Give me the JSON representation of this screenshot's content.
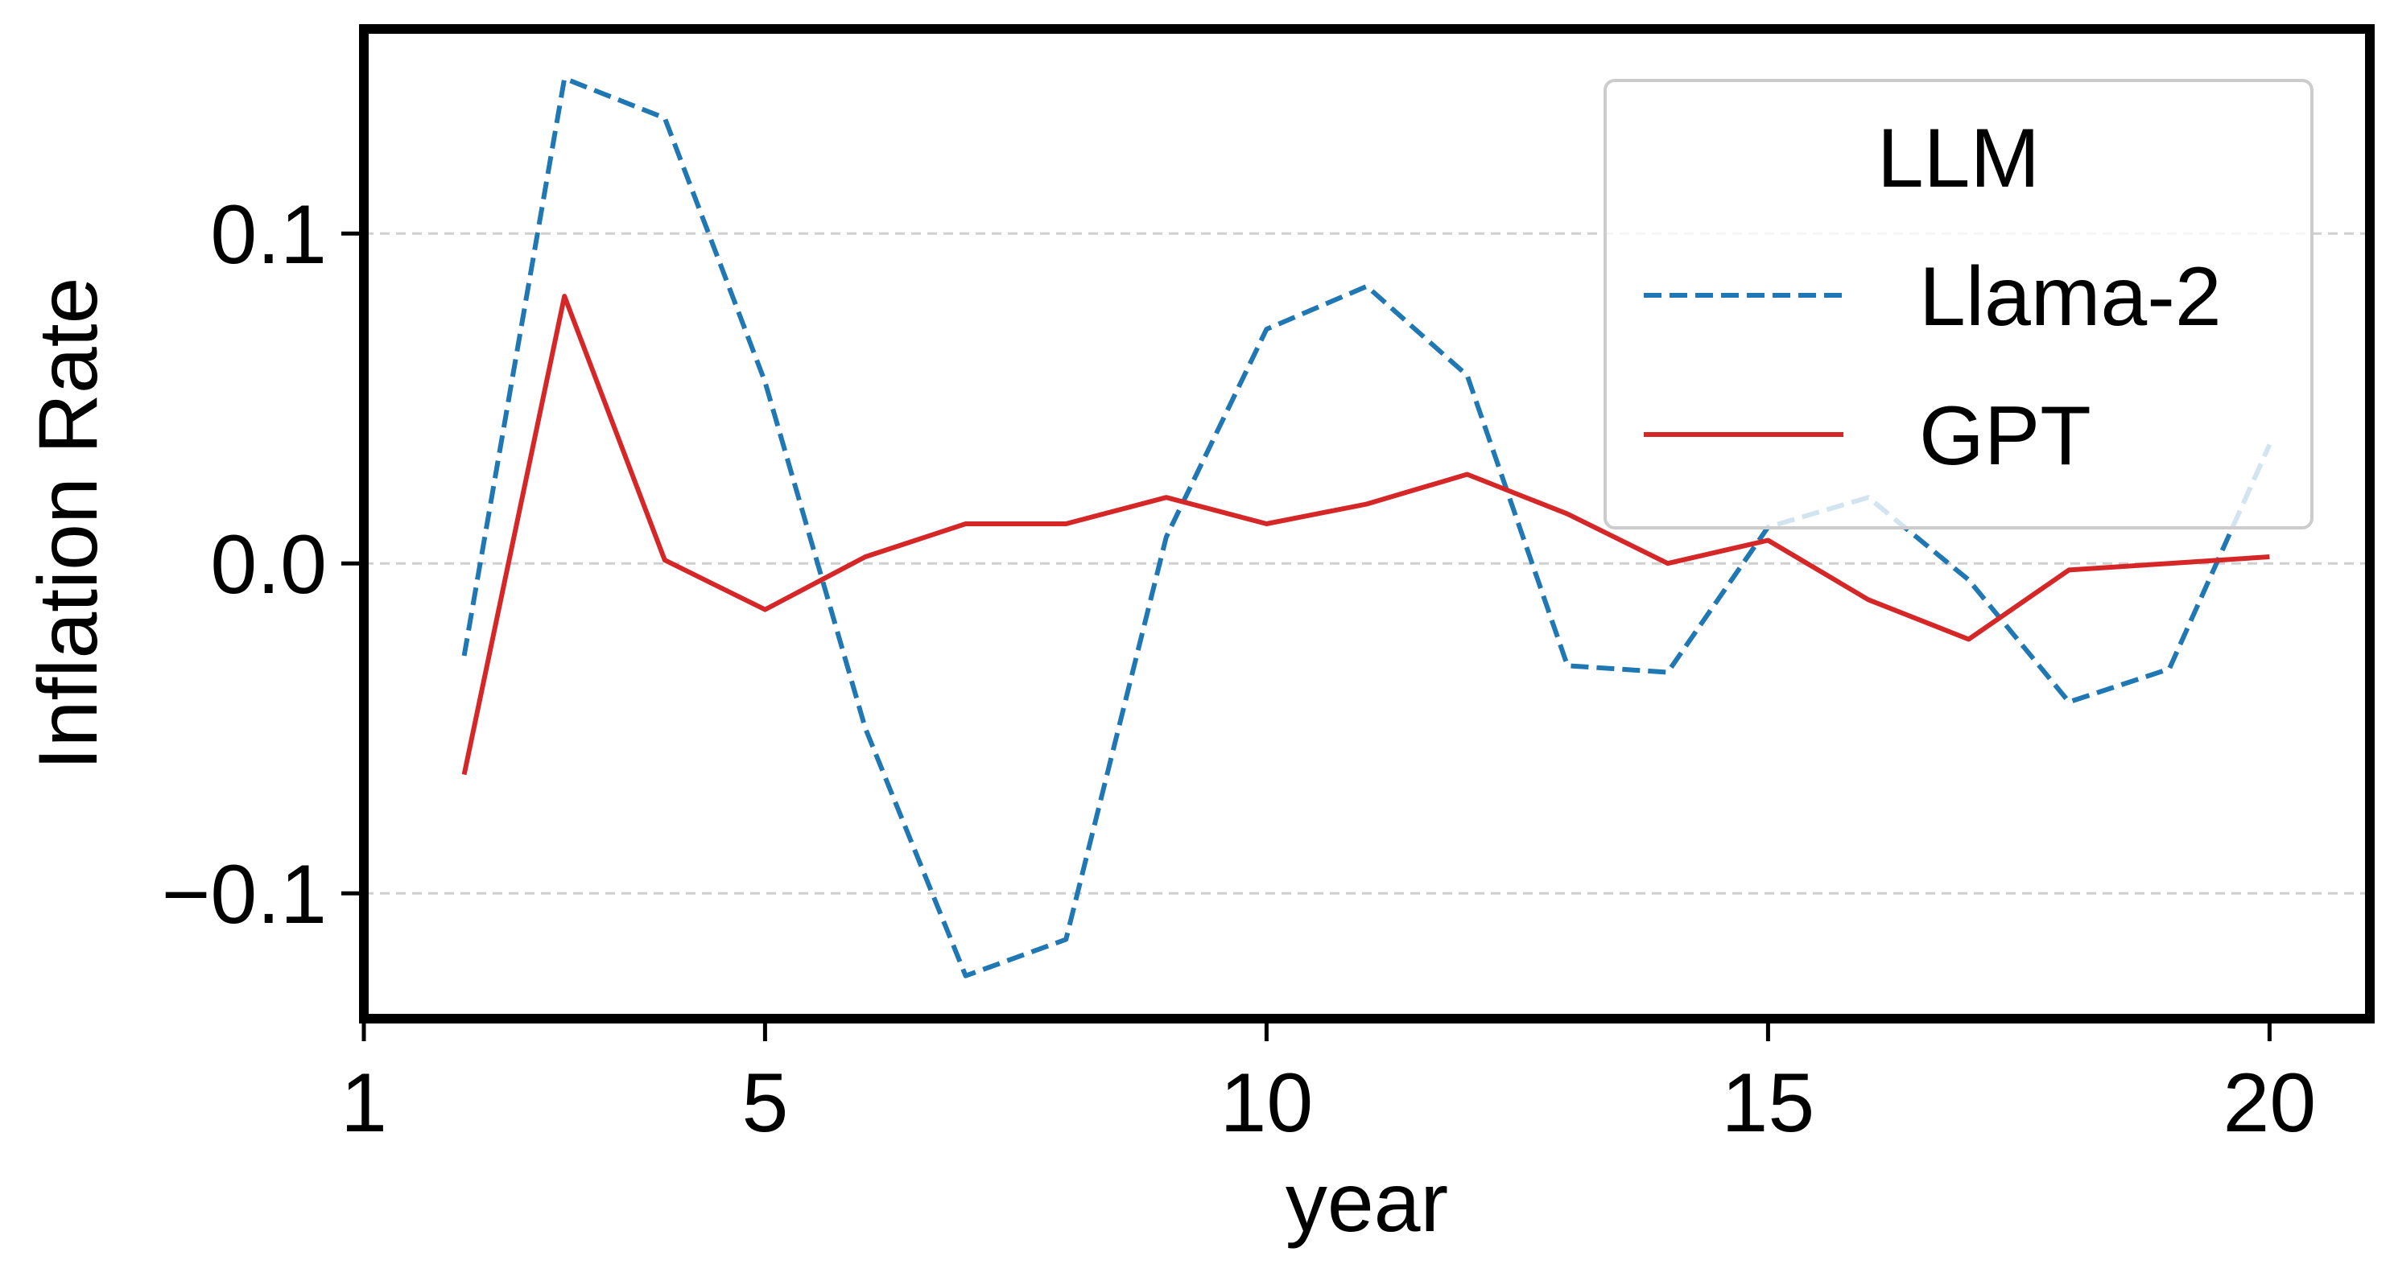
{
  "chart_data": {
    "type": "line",
    "xlabel": "year",
    "ylabel": "Inflation Rate",
    "xlim": [
      1,
      21.0
    ],
    "ylim": [
      -0.138,
      0.162
    ],
    "xticks": [
      1,
      5,
      10,
      15,
      20
    ],
    "xtick_labels": [
      "1",
      "5",
      "10",
      "15",
      "20"
    ],
    "yticks": [
      -0.1,
      0.0,
      0.1
    ],
    "ytick_labels": [
      "−0.1",
      "0.0",
      "0.1"
    ],
    "grid": {
      "y": true,
      "x": false,
      "style": "dashed"
    },
    "legend": {
      "title": "LLM",
      "position": "upper-right"
    },
    "x": [
      2,
      3,
      4,
      5,
      6,
      7,
      8,
      9,
      10,
      11,
      12,
      13,
      14,
      15,
      16,
      17,
      18,
      19,
      20
    ],
    "series": [
      {
        "name": "Llama-2",
        "color": "#1f77b4",
        "dash": "dashed",
        "values": [
          -0.028,
          0.147,
          0.135,
          0.055,
          -0.05,
          -0.125,
          -0.114,
          0.008,
          0.071,
          0.084,
          0.057,
          -0.031,
          -0.033,
          0.011,
          0.02,
          -0.005,
          -0.042,
          -0.032,
          0.036
        ]
      },
      {
        "name": "GPT",
        "color": "#d62728",
        "dash": "solid",
        "values": [
          -0.064,
          0.081,
          0.001,
          -0.014,
          0.002,
          0.012,
          0.012,
          0.02,
          0.012,
          0.018,
          0.027,
          0.015,
          0.0,
          0.007,
          -0.011,
          -0.023,
          -0.002,
          0.0,
          0.002
        ]
      }
    ]
  }
}
